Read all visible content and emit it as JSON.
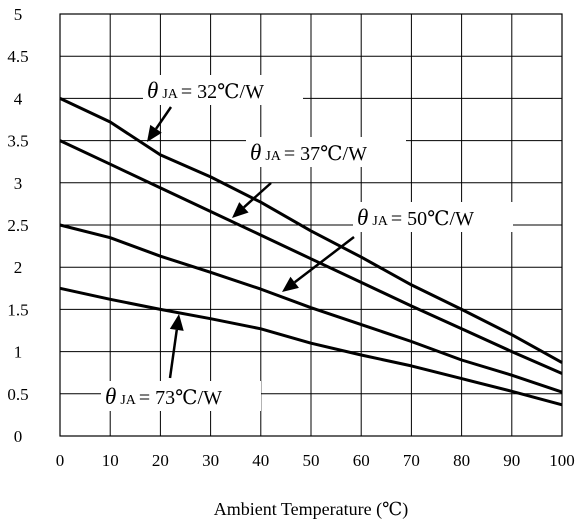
{
  "chart_data": {
    "type": "line",
    "title": "",
    "xlabel": "Ambient Temperature (℃)",
    "ylabel": "",
    "xlim": [
      0,
      100
    ],
    "ylim": [
      0,
      5
    ],
    "grid": true,
    "xticks": [
      "0",
      "10",
      "20",
      "30",
      "40",
      "50",
      "60",
      "70",
      "80",
      "90",
      "100"
    ],
    "yticks": [
      "0",
      "0.5",
      "1",
      "1.5",
      "2",
      "2.5",
      "3",
      "3.5",
      "4",
      "4.5",
      "5"
    ],
    "series": [
      {
        "name": "θJA = 32℃/W",
        "x": [
          0,
          10,
          20,
          30,
          40,
          50,
          60,
          70,
          80,
          90,
          100
        ],
        "y": [
          4.0,
          3.72,
          3.33,
          3.07,
          2.77,
          2.43,
          2.12,
          1.79,
          1.5,
          1.2,
          0.87
        ]
      },
      {
        "name": "θJA = 37℃/W",
        "x": [
          0,
          10,
          20,
          30,
          40,
          50,
          60,
          70,
          80,
          90,
          100
        ],
        "y": [
          3.5,
          3.22,
          2.94,
          2.66,
          2.38,
          2.1,
          1.82,
          1.54,
          1.27,
          1.0,
          0.74
        ]
      },
      {
        "name": "θJA = 50℃/W",
        "x": [
          0,
          10,
          20,
          30,
          40,
          50,
          60,
          70,
          80,
          90,
          100
        ],
        "y": [
          2.5,
          2.35,
          2.13,
          1.94,
          1.74,
          1.52,
          1.32,
          1.12,
          0.9,
          0.72,
          0.52
        ]
      },
      {
        "name": "θJA = 73℃/W",
        "x": [
          0,
          10,
          20,
          30,
          40,
          50,
          60,
          70,
          80,
          90,
          100
        ],
        "y": [
          1.75,
          1.62,
          1.5,
          1.39,
          1.27,
          1.1,
          0.96,
          0.83,
          0.68,
          0.53,
          0.37
        ]
      }
    ],
    "annotations": [
      {
        "theta": "θ",
        "sub": "JA",
        "eq": "= 32℃/W",
        "series": 0
      },
      {
        "theta": "θ",
        "sub": "JA",
        "eq": "= 37℃/W",
        "series": 1
      },
      {
        "theta": "θ",
        "sub": "JA",
        "eq": "= 50℃/W",
        "series": 2
      },
      {
        "theta": "θ",
        "sub": "JA",
        "eq": "= 73℃/W",
        "series": 3
      }
    ]
  }
}
